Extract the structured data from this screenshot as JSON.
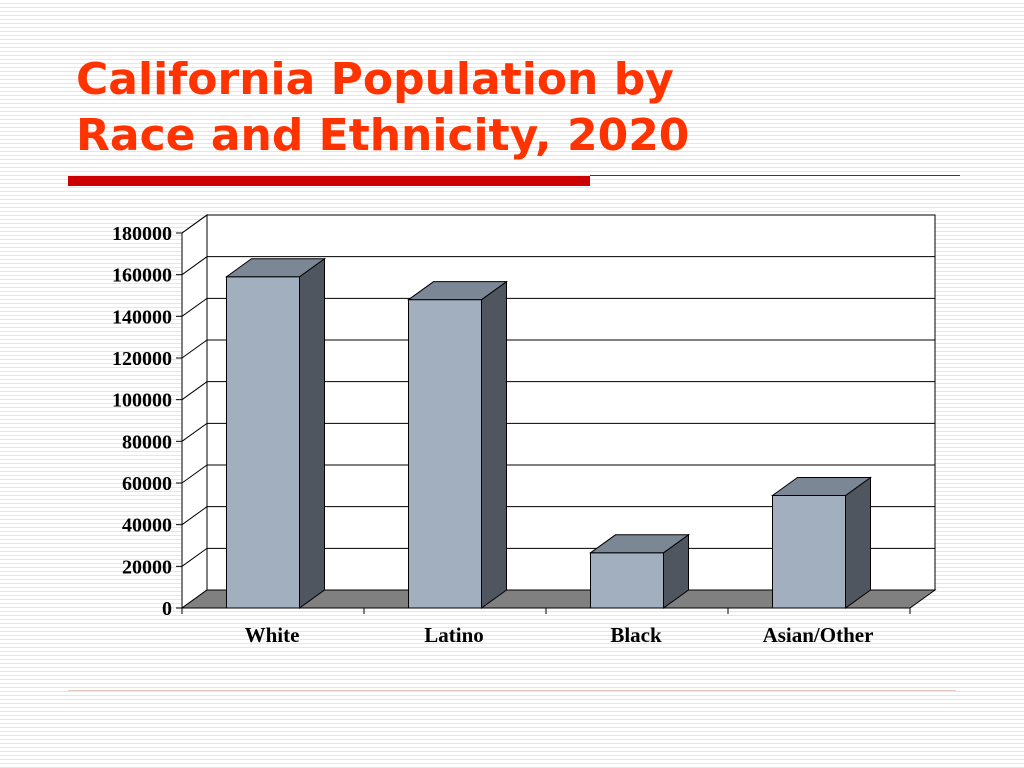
{
  "slide": {
    "title_line1": "California Population by",
    "title_line2": "Race and Ethnicity, 2020"
  },
  "colors": {
    "title": "#ff3300",
    "accent_rule": "#cc0000",
    "bar_front": "#a2afbf",
    "bar_side": "#50565f",
    "bar_top": "#7c8795",
    "floor": "#808080"
  },
  "chart_data": {
    "type": "bar",
    "style": "3d-column",
    "categories": [
      "White",
      "Latino",
      "Black",
      "Asian/Other"
    ],
    "values": [
      159000,
      148000,
      26500,
      54000
    ],
    "ylim": [
      0,
      180000
    ],
    "yticks": [
      "0",
      "20000",
      "40000",
      "60000",
      "80000",
      "100000",
      "120000",
      "140000",
      "160000",
      "180000"
    ],
    "grid": true,
    "legend": "none"
  }
}
